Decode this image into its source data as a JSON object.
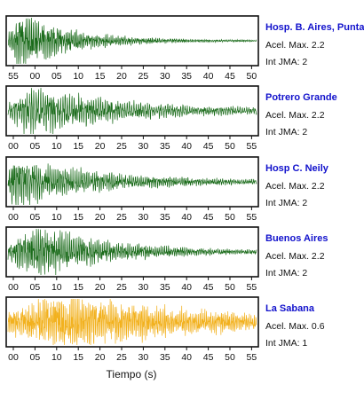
{
  "chart_data": {
    "type": "line",
    "xlabel": "Tiempo (s)",
    "panels": [
      {
        "station": "Hosp. B. Aires, Puntare",
        "acel_label": "Acel. Max. 2.2",
        "int_label": "Int JMA: 2",
        "color": "#1a6b1a",
        "ticks": [
          "55",
          "00",
          "05",
          "10",
          "15",
          "20",
          "25",
          "30",
          "35",
          "40",
          "45",
          "50"
        ],
        "amp": 1.0,
        "onset": 0.0,
        "peak": 0.05,
        "decay": 4.5,
        "freq": 1.6,
        "noise": 0.02,
        "seed": 3
      },
      {
        "station": "Potrero Grande",
        "acel_label": "Acel. Max. 2.2",
        "int_label": "Int JMA: 2",
        "color": "#1a6b1a",
        "ticks": [
          "00",
          "05",
          "10",
          "15",
          "20",
          "25",
          "30",
          "35",
          "40",
          "45",
          "50",
          "55"
        ],
        "amp": 0.85,
        "onset": 0.0,
        "peak": 0.1,
        "decay": 3.0,
        "freq": 1.2,
        "noise": 0.08,
        "seed": 7
      },
      {
        "station": "Hosp C. Neily",
        "acel_label": "Acel. Max. 2.2",
        "int_label": "Int JMA: 2",
        "color": "#1a6b1a",
        "ticks": [
          "00",
          "05",
          "10",
          "15",
          "20",
          "25",
          "30",
          "35",
          "40",
          "45",
          "50",
          "55"
        ],
        "amp": 0.95,
        "onset": 0.0,
        "peak": 0.02,
        "decay": 3.2,
        "freq": 1.4,
        "noise": 0.06,
        "seed": 11
      },
      {
        "station": "Buenos Aires",
        "acel_label": "Acel. Max. 2.2",
        "int_label": "Int JMA: 2",
        "color": "#1a6b1a",
        "ticks": [
          "00",
          "05",
          "10",
          "15",
          "20",
          "25",
          "30",
          "35",
          "40",
          "45",
          "50",
          "55"
        ],
        "amp": 1.0,
        "onset": 0.0,
        "peak": 0.12,
        "decay": 3.5,
        "freq": 1.5,
        "noise": 0.04,
        "seed": 19
      },
      {
        "station": "La Sabana",
        "acel_label": "Acel. Max. 0.6",
        "int_label": "Int JMA: 1",
        "color": "#f2b11e",
        "ticks": [
          "00",
          "05",
          "10",
          "15",
          "20",
          "25",
          "30",
          "35",
          "40",
          "45",
          "50",
          "55"
        ],
        "amp": 0.95,
        "onset": 0.0,
        "peak": 0.22,
        "decay": 2.2,
        "freq": 1.8,
        "noise": 0.18,
        "seed": 23
      }
    ]
  }
}
